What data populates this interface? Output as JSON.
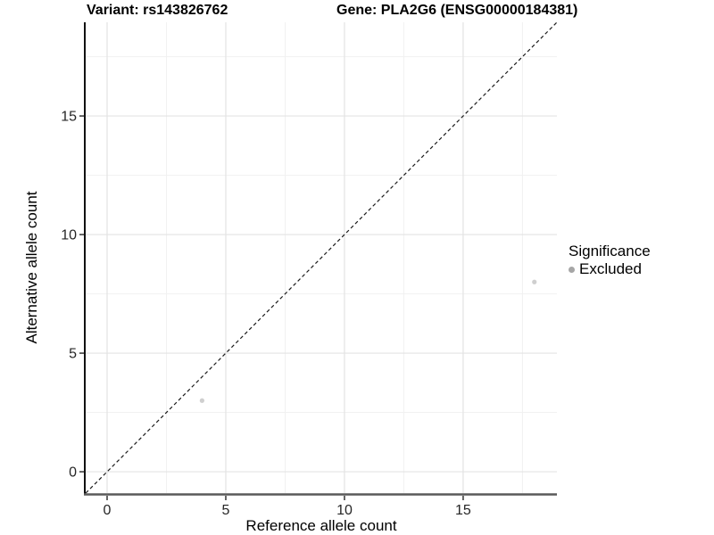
{
  "header": {
    "title_left": "Variant: rs143826762",
    "title_right": "Gene: PLA2G6 (ENSG00000184381)"
  },
  "chart_data": {
    "type": "scatter",
    "title": "Variant: rs143826762   Gene: PLA2G6 (ENSG00000184381)",
    "xlabel": "Reference allele count",
    "ylabel": "Alternative allele count",
    "xlim": [
      -0.94,
      18.95
    ],
    "ylim": [
      -0.9,
      18.95
    ],
    "x_major_ticks": [
      0,
      5,
      10,
      15
    ],
    "y_major_ticks": [
      0,
      5,
      10,
      15
    ],
    "x_minor_ticks": [
      2.5,
      7.5,
      12.5,
      17.5
    ],
    "y_minor_ticks": [
      2.5,
      7.5,
      12.5,
      17.5
    ],
    "grid": true,
    "series": [
      {
        "name": "Excluded",
        "points": [
          {
            "x": 4,
            "y": 3
          },
          {
            "x": 18,
            "y": 8
          }
        ],
        "color": "#cfcfcf",
        "point_radius": 2.6
      }
    ],
    "reference_line": {
      "type": "identity",
      "slope": 1,
      "intercept": 0,
      "style": "dashed",
      "color": "#1a1a1a"
    },
    "legend": {
      "title": "Significance",
      "position": "right",
      "items": [
        {
          "label": "Excluded",
          "marker_color": "#a6a6a6"
        }
      ]
    }
  },
  "style_colors": {
    "grid_major": "#e3e3e3",
    "grid_minor": "#f1f1f1",
    "axis_line_y": "#111111",
    "axis_line_x": "#5a5a5a",
    "tick_mark": "#333333",
    "tick_label": "#262626",
    "background": "#ffffff"
  }
}
